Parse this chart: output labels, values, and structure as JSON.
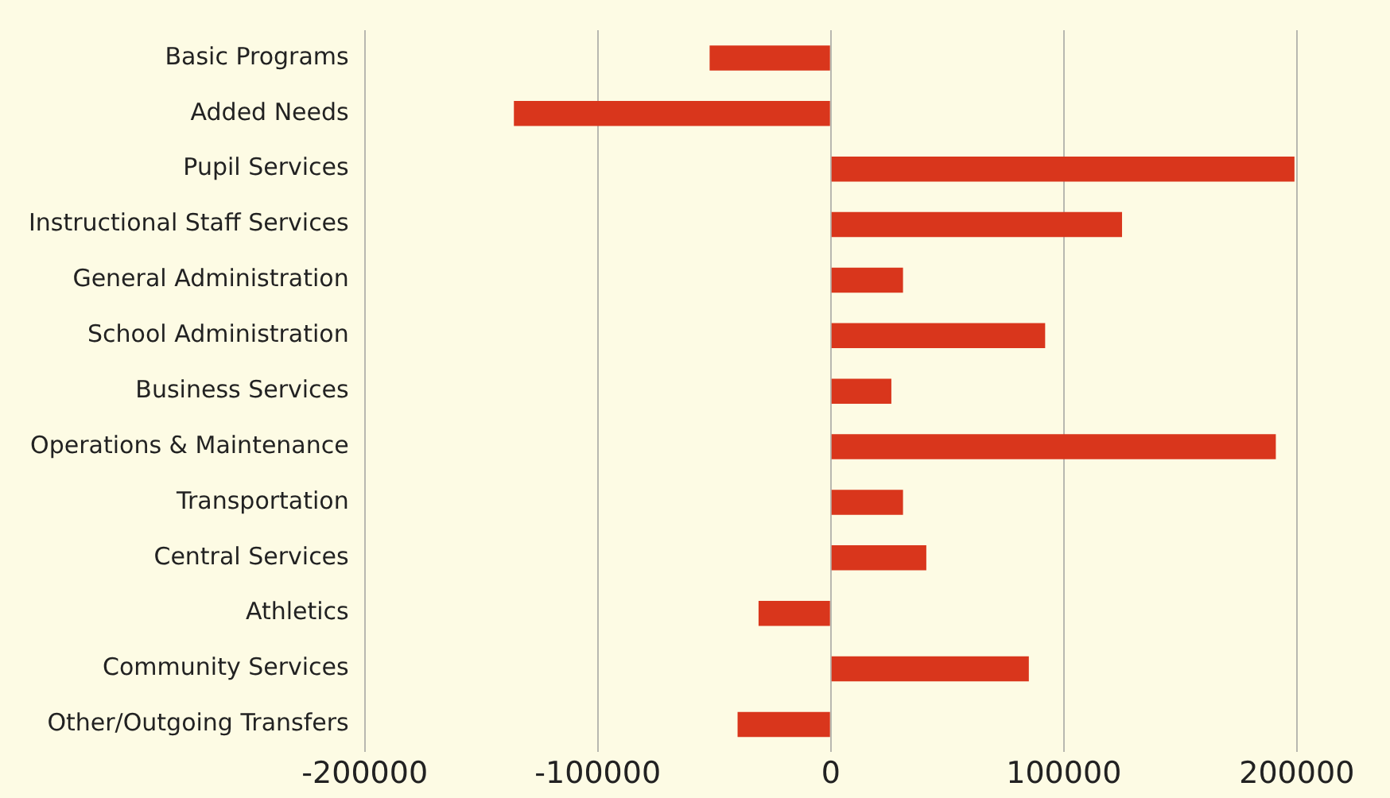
{
  "chart_data": {
    "type": "bar",
    "orientation": "horizontal",
    "categories": [
      "Basic Programs",
      "Added Needs",
      "Pupil Services",
      "Instructional Staff Services",
      "General Administration",
      "School Administration",
      "Business Services",
      "Operations & Maintenance",
      "Transportation",
      "Central Services",
      "Athletics",
      "Community Services",
      "Other/Outgoing Transfers"
    ],
    "values": [
      -52000,
      -136000,
      199000,
      125000,
      31000,
      92000,
      26000,
      191000,
      31000,
      41000,
      -31000,
      85000,
      -40000
    ],
    "color": "#d9361c",
    "xlim": [
      -200000,
      240000
    ],
    "xticks": [
      -200000,
      -100000,
      0,
      100000,
      200000
    ],
    "grid": "x",
    "legend": false
  }
}
